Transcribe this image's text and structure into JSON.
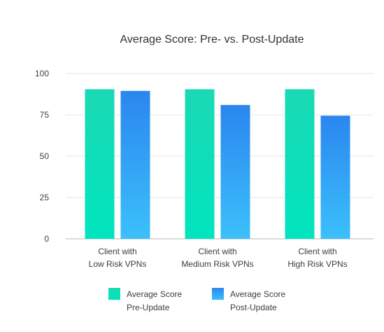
{
  "chart_data": {
    "type": "bar",
    "title": "Average Score: Pre- vs. Post-Update",
    "categories": [
      [
        "Client with",
        "Low Risk VPNs"
      ],
      [
        "Client with",
        "Medium Risk VPNs"
      ],
      [
        "Client with",
        "High Risk VPNs"
      ]
    ],
    "series": [
      {
        "name": [
          "Average Score",
          "Pre-Update"
        ],
        "values": [
          90.5,
          90.5,
          90.5
        ],
        "color_top": "#1ad9b4",
        "color_bottom": "#00e5be"
      },
      {
        "name": [
          "Average Score",
          "Post-Update"
        ],
        "values": [
          89.5,
          81,
          74.5
        ],
        "color_top": "#2a86ef",
        "color_bottom": "#3cc0fb"
      }
    ],
    "y_ticks": [
      0,
      25,
      50,
      75,
      100
    ],
    "ylim": [
      0,
      100
    ],
    "grid": "horizontal",
    "legend": "bottom",
    "colors": {
      "grid": "#e3e4e6",
      "axis": "#b5b7ba",
      "text": "#3a3d42"
    }
  }
}
